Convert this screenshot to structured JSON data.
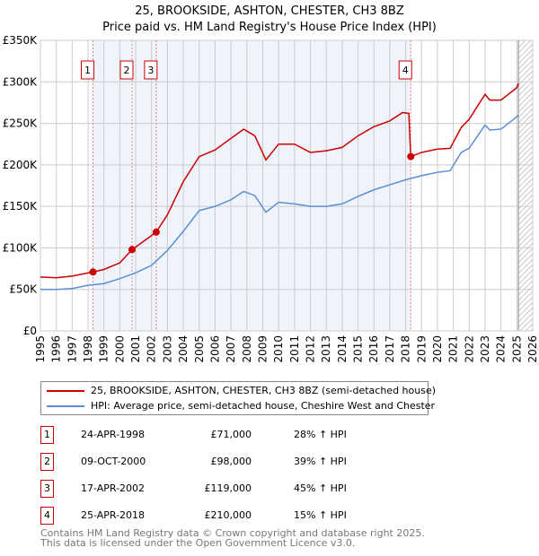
{
  "title": "25, BROOKSIDE, ASHTON, CHESTER, CH3 8BZ",
  "subtitle": "Price paid vs. HM Land Registry's House Price Index (HPI)",
  "chart_data": {
    "type": "line",
    "ylim": [
      0,
      350000
    ],
    "xlim": [
      1995,
      2026
    ],
    "yticks": [
      {
        "v": 0,
        "l": "£0"
      },
      {
        "v": 50000,
        "l": "£50K"
      },
      {
        "v": 100000,
        "l": "£100K"
      },
      {
        "v": 150000,
        "l": "£150K"
      },
      {
        "v": 200000,
        "l": "£200K"
      },
      {
        "v": 250000,
        "l": "£250K"
      },
      {
        "v": 300000,
        "l": "£300K"
      },
      {
        "v": 350000,
        "l": "£350K"
      }
    ],
    "xticks": [
      "1995",
      "1996",
      "1997",
      "1998",
      "1999",
      "2000",
      "2001",
      "2002",
      "2003",
      "2004",
      "2005",
      "2006",
      "2007",
      "2008",
      "2009",
      "2010",
      "2011",
      "2012",
      "2013",
      "2014",
      "2015",
      "2016",
      "2017",
      "2018",
      "2019",
      "2020",
      "2021",
      "2022",
      "2023",
      "2024",
      "2025",
      "2026"
    ],
    "shaded_range": [
      1998.31,
      2018.32
    ],
    "forecast_from": 2025.1,
    "series": [
      {
        "name": "25, BROOKSIDE, ASHTON, CHESTER, CH3 8BZ (semi-detached house)",
        "color": "#cc0000",
        "x": [
          1995,
          1996,
          1997,
          1998.31,
          1999,
          2000,
          2000.77,
          2001,
          2002.29,
          2003,
          2004,
          2005,
          2006,
          2007,
          2007.8,
          2008.5,
          2009.2,
          2010,
          2011,
          2012,
          2013,
          2014,
          2015,
          2016,
          2017,
          2017.8,
          2018.2,
          2018.32,
          2019,
          2020,
          2020.8,
          2021.5,
          2022,
          2023,
          2023.3,
          2024,
          2025,
          2025.1
        ],
        "y": [
          65000,
          64000,
          66000,
          71000,
          74000,
          82000,
          98000,
          101000,
          119000,
          140000,
          180000,
          210000,
          218000,
          232000,
          243000,
          235000,
          206000,
          225000,
          225000,
          215000,
          217000,
          221000,
          235000,
          246000,
          253000,
          263000,
          262000,
          210000,
          215000,
          219000,
          220000,
          245000,
          255000,
          285000,
          278000,
          278000,
          293000,
          298000
        ]
      },
      {
        "name": "HPI: Average price, semi-detached house, Cheshire West and Chester",
        "color": "#5b8fd4",
        "x": [
          1995,
          1996,
          1997,
          1998,
          1999,
          2000,
          2001,
          2002,
          2003,
          2004,
          2005,
          2006,
          2007,
          2007.8,
          2008.5,
          2009.2,
          2010,
          2011,
          2012,
          2013,
          2014,
          2015,
          2016,
          2017,
          2018,
          2019,
          2020,
          2020.8,
          2021.5,
          2022,
          2023,
          2023.3,
          2024,
          2025,
          2025.1
        ],
        "y": [
          50000,
          50000,
          51000,
          55000,
          57000,
          63000,
          70000,
          79000,
          97000,
          120000,
          145000,
          150000,
          158000,
          168000,
          163000,
          143000,
          155000,
          153000,
          150000,
          150000,
          153000,
          162000,
          170000,
          176000,
          182000,
          187000,
          191000,
          193000,
          215000,
          220000,
          248000,
          242000,
          243000,
          258000,
          260000
        ]
      }
    ],
    "sales": [
      {
        "n": "1",
        "x": 1998.31,
        "y": 71000
      },
      {
        "n": "2",
        "x": 2000.77,
        "y": 98000
      },
      {
        "n": "3",
        "x": 2002.29,
        "y": 119000
      },
      {
        "n": "4",
        "x": 2018.32,
        "y": 210000
      }
    ]
  },
  "legend": [
    "25, BROOKSIDE, ASHTON, CHESTER, CH3 8BZ (semi-detached house)",
    "HPI: Average price, semi-detached house, Cheshire West and Chester"
  ],
  "table": [
    {
      "n": "1",
      "date": "24-APR-1998",
      "price": "£71,000",
      "hpi": "28% ↑ HPI"
    },
    {
      "n": "2",
      "date": "09-OCT-2000",
      "price": "£98,000",
      "hpi": "39% ↑ HPI"
    },
    {
      "n": "3",
      "date": "17-APR-2002",
      "price": "£119,000",
      "hpi": "45% ↑ HPI"
    },
    {
      "n": "4",
      "date": "25-APR-2018",
      "price": "£210,000",
      "hpi": "15% ↑ HPI"
    }
  ],
  "footer": [
    "Contains HM Land Registry data © Crown copyright and database right 2025.",
    "This data is licensed under the Open Government Licence v3.0."
  ]
}
